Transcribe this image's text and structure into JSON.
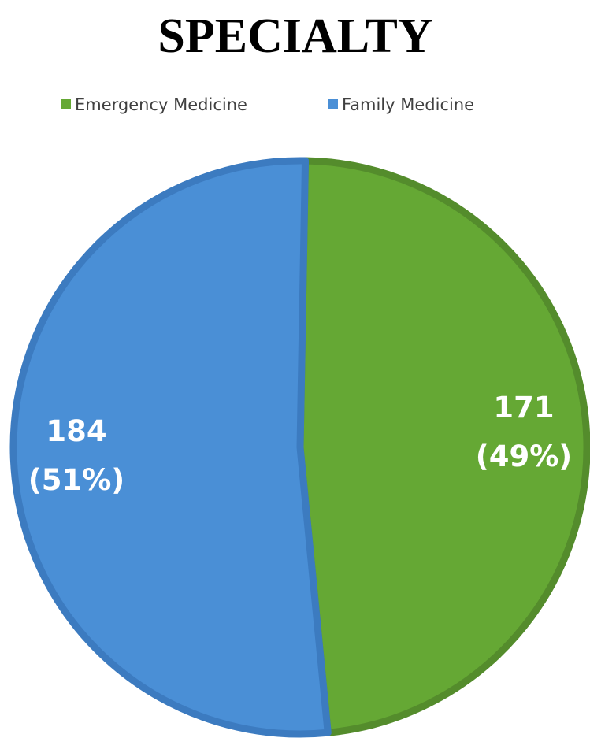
{
  "chart_data": {
    "type": "pie",
    "title": "SPECIALTY",
    "categories": [
      "Emergency Medicine",
      "Family Medicine"
    ],
    "values": [
      171,
      184
    ],
    "value_labels": [
      "171 (49%)",
      "184 (51%)"
    ],
    "colors": [
      "#65a834",
      "#4a8fd6"
    ],
    "legend": "top"
  }
}
